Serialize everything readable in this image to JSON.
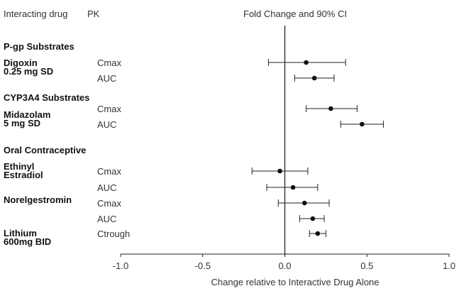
{
  "headers": {
    "drug": "Interacting drug",
    "pk": "PK",
    "chart": "Fold Change and 90% CI"
  },
  "groups": [
    {
      "label": "P-gp Substrates"
    },
    {
      "label": "CYP3A4 Substrates"
    },
    {
      "label": "Oral Contraceptive"
    }
  ],
  "drugs": [
    {
      "lines": [
        "Digoxin",
        "0.25 mg SD"
      ]
    },
    {
      "lines": [
        "Midazolam",
        "5 mg SD"
      ]
    },
    {
      "lines": [
        "Ethinyl",
        "Estradiol"
      ]
    },
    {
      "lines": [
        "Norelgestromin"
      ]
    },
    {
      "lines": [
        "Lithium",
        "600mg BID"
      ]
    }
  ],
  "chart_data": {
    "type": "scatter",
    "xlim": [
      -1.0,
      1.0
    ],
    "xticks": [
      -1.0,
      -0.5,
      0.0,
      0.5,
      1.0
    ],
    "xtick_labels": [
      "-1.0",
      "-0.5",
      "0.0",
      "0.5",
      "1.0"
    ],
    "xlabel": "Change relative to Interactive Drug Alone",
    "reference_line": 0.0,
    "rows": [
      {
        "drug": "Digoxin 0.25 mg SD",
        "pk": "Cmax",
        "estimate": 0.13,
        "lower": -0.1,
        "upper": 0.37
      },
      {
        "drug": "Digoxin 0.25 mg SD",
        "pk": "AUC",
        "estimate": 0.18,
        "lower": 0.06,
        "upper": 0.3
      },
      {
        "drug": "Midazolam 5 mg SD",
        "pk": "Cmax",
        "estimate": 0.28,
        "lower": 0.13,
        "upper": 0.44
      },
      {
        "drug": "Midazolam 5 mg SD",
        "pk": "AUC",
        "estimate": 0.47,
        "lower": 0.34,
        "upper": 0.6
      },
      {
        "drug": "Ethinyl Estradiol",
        "pk": "Cmax",
        "estimate": -0.03,
        "lower": -0.2,
        "upper": 0.14
      },
      {
        "drug": "Ethinyl Estradiol",
        "pk": "AUC",
        "estimate": 0.05,
        "lower": -0.11,
        "upper": 0.2
      },
      {
        "drug": "Norelgestromin",
        "pk": "Cmax",
        "estimate": 0.12,
        "lower": -0.04,
        "upper": 0.27
      },
      {
        "drug": "Norelgestromin",
        "pk": "AUC",
        "estimate": 0.17,
        "lower": 0.09,
        "upper": 0.24
      },
      {
        "drug": "Lithium 600mg BID",
        "pk": "Ctrough",
        "estimate": 0.2,
        "lower": 0.15,
        "upper": 0.25
      }
    ]
  }
}
